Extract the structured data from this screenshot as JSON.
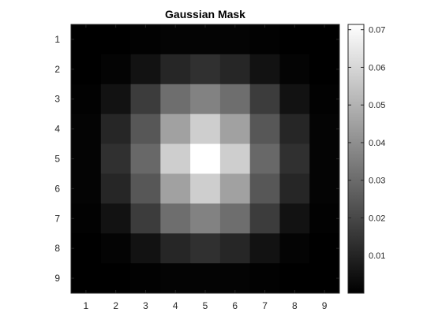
{
  "chart_data": {
    "type": "heatmap",
    "title": "Gaussian Mask",
    "xlabel": "",
    "ylabel": "",
    "x_ticks": [
      "1",
      "2",
      "3",
      "4",
      "5",
      "6",
      "7",
      "8",
      "9"
    ],
    "y_ticks": [
      "1",
      "2",
      "3",
      "4",
      "5",
      "6",
      "7",
      "8",
      "9"
    ],
    "colormap": "gray",
    "color_range": [
      0.0,
      0.0714
    ],
    "colorbar": {
      "ticks": [
        0.01,
        0.02,
        0.03,
        0.04,
        0.05,
        0.06,
        0.07
      ],
      "tick_labels": [
        "0.01",
        "0.02",
        "0.03",
        "0.04",
        "0.05",
        "0.06",
        "0.07"
      ],
      "placement": "right"
    },
    "values": [
      [
        0.0,
        0.0001,
        0.0005,
        0.001,
        0.0012,
        0.001,
        0.0005,
        0.0001,
        0.0
      ],
      [
        0.0001,
        0.001,
        0.0051,
        0.0106,
        0.0134,
        0.0106,
        0.0051,
        0.001,
        0.0001
      ],
      [
        0.0005,
        0.0051,
        0.0167,
        0.0307,
        0.0365,
        0.0307,
        0.0167,
        0.0051,
        0.0005
      ],
      [
        0.001,
        0.0106,
        0.0243,
        0.0451,
        0.0577,
        0.0451,
        0.0243,
        0.0106,
        0.001
      ],
      [
        0.0012,
        0.0134,
        0.029,
        0.0577,
        0.0714,
        0.0577,
        0.029,
        0.0134,
        0.0012
      ],
      [
        0.001,
        0.0106,
        0.0243,
        0.0451,
        0.0577,
        0.0451,
        0.0243,
        0.0106,
        0.001
      ],
      [
        0.0005,
        0.0051,
        0.0167,
        0.0307,
        0.0365,
        0.0307,
        0.0167,
        0.0051,
        0.0005
      ],
      [
        0.0001,
        0.001,
        0.0051,
        0.0106,
        0.0134,
        0.0106,
        0.0051,
        0.001,
        0.0001
      ],
      [
        0.0,
        0.0001,
        0.0005,
        0.001,
        0.0012,
        0.001,
        0.0005,
        0.0001,
        0.0
      ]
    ]
  }
}
